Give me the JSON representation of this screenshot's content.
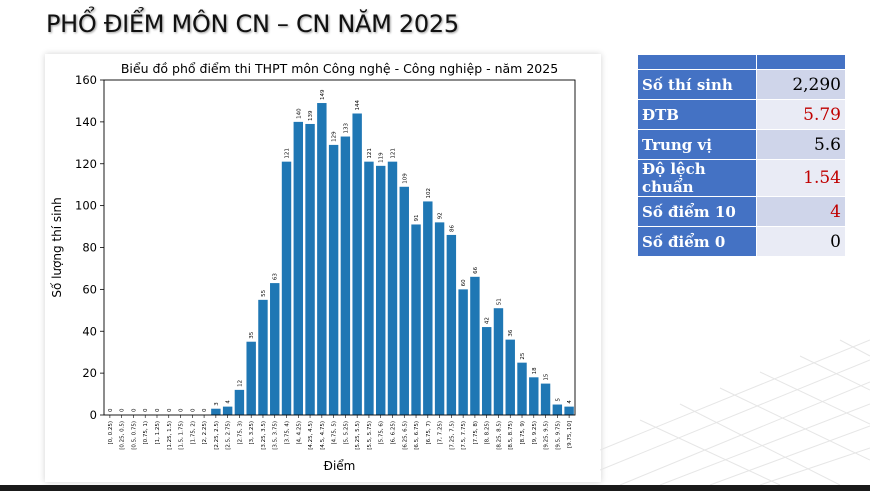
{
  "slide": {
    "title": "PHỔ ĐIỂM MÔN CN – CN NĂM 2025"
  },
  "stats": [
    {
      "label": "Số thí sinh",
      "value": "2,290",
      "color": "#000000"
    },
    {
      "label": "ĐTB",
      "value": "5.79",
      "color": "#c00000"
    },
    {
      "label": "Trung vị",
      "value": "5.6",
      "color": "#000000"
    },
    {
      "label": "Độ lệch chuẩn",
      "value": "1.54",
      "color": "#c00000"
    },
    {
      "label": "Số điểm 10",
      "value": "4",
      "color": "#c00000"
    },
    {
      "label": "Số điểm 0",
      "value": "0",
      "color": "#000000"
    }
  ],
  "chart_data": {
    "type": "bar",
    "title": "Biểu đồ phổ điểm thi THPT môn Công nghệ - Công nghiệp - năm 2025",
    "xlabel": "Điểm",
    "ylabel": "Số lượng thí sinh",
    "ylim": [
      0,
      160
    ],
    "yticks": [
      0,
      20,
      40,
      60,
      80,
      100,
      120,
      140,
      160
    ],
    "bar_color": "#1f77b4",
    "categories": [
      "[0, 0.25)",
      "[0.25, 0.5)",
      "[0.5, 0.75)",
      "[0.75, 1)",
      "[1, 1.25)",
      "[1.25, 1.5)",
      "[1.5, 1.75)",
      "[1.75, 2)",
      "[2, 2.25)",
      "[2.25, 2.5)",
      "[2.5, 2.75)",
      "[2.75, 3)",
      "[3, 3.25)",
      "[3.25, 3.5)",
      "[3.5, 3.75)",
      "[3.75, 4)",
      "[4, 4.25)",
      "[4.25, 4.5)",
      "[4.5, 4.75)",
      "[4.75, 5)",
      "[5, 5.25)",
      "[5.25, 5.5)",
      "[5.5, 5.75)",
      "[5.75, 6)",
      "[6, 6.25)",
      "[6.25, 6.5)",
      "[6.5, 6.75)",
      "[6.75, 7)",
      "[7, 7.25)",
      "[7.25, 7.5)",
      "[7.5, 7.75)",
      "[7.75, 8)",
      "[8, 8.25)",
      "[8.25, 8.5)",
      "[8.5, 8.75)",
      "[8.75, 9)",
      "[9, 9.25)",
      "[9.25, 9.5)",
      "[9.5, 9.75)",
      "[9.75, 10]"
    ],
    "values": [
      0,
      0,
      0,
      0,
      0,
      0,
      0,
      0,
      0,
      3,
      4,
      12,
      35,
      55,
      63,
      121,
      140,
      139,
      149,
      129,
      133,
      144,
      121,
      119,
      121,
      109,
      91,
      102,
      92,
      86,
      60,
      66,
      42,
      51,
      36,
      25,
      18,
      15,
      5,
      4
    ],
    "grid": false,
    "legend": "none"
  }
}
